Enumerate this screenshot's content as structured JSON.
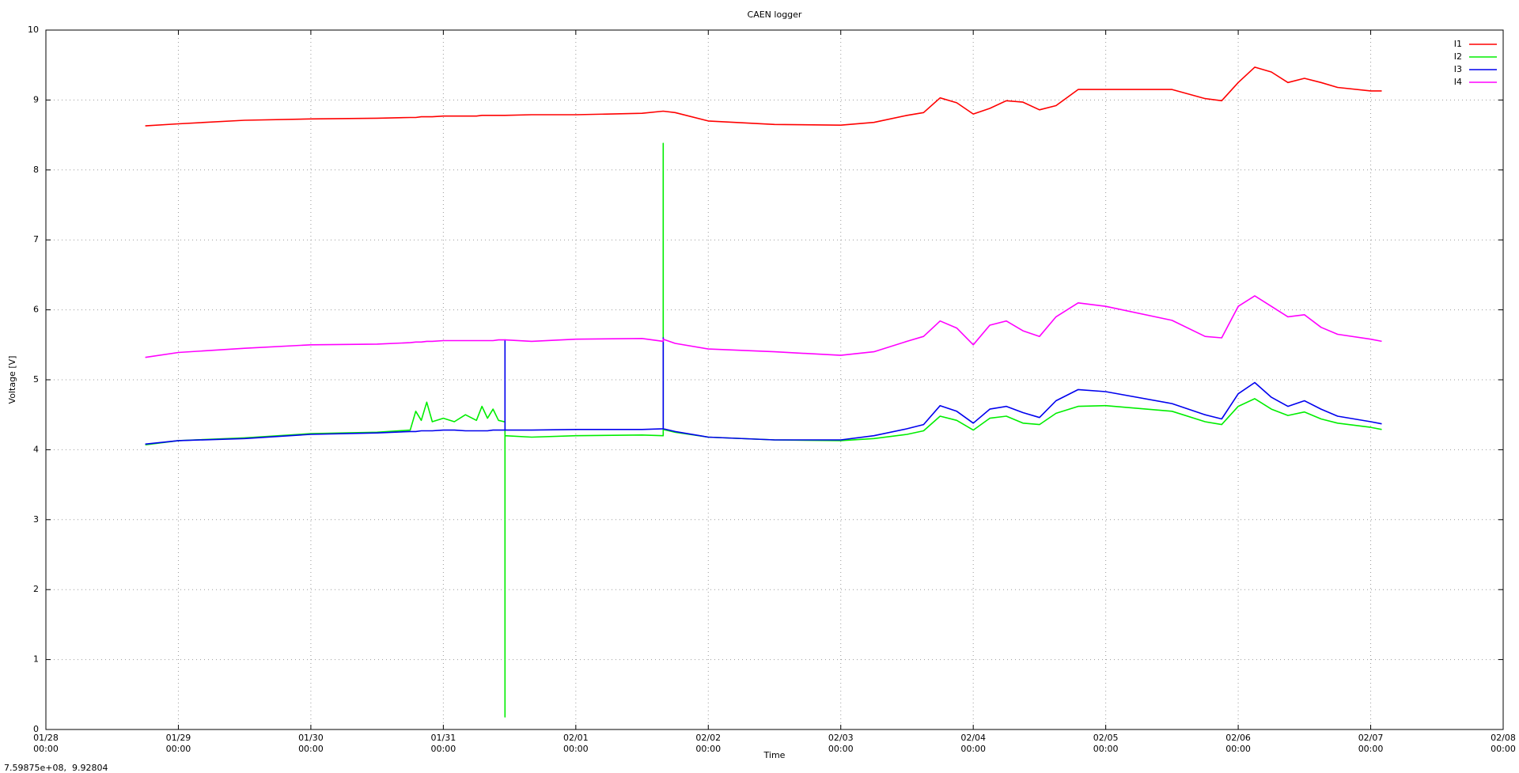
{
  "chart_data": {
    "type": "line",
    "title": "CAEN logger",
    "x_label": "Time",
    "y_label": "Voltage [V]",
    "status_text": "7.59875e+08,  9.92804",
    "grid": true,
    "legend_position": "top-right",
    "xlim": [
      "01/28 00:00",
      "02/08 00:00"
    ],
    "xticks": [
      "01/28 00:00",
      "01/29 00:00",
      "01/30 00:00",
      "01/31 00:00",
      "02/01 00:00",
      "02/02 00:00",
      "02/03 00:00",
      "02/04 00:00",
      "02/05 00:00",
      "02/06 00:00",
      "02/07 00:00",
      "02/08 00:00"
    ],
    "ylim": [
      0,
      10
    ],
    "yticks": [
      0,
      1,
      2,
      3,
      4,
      5,
      6,
      7,
      8,
      9,
      10
    ],
    "x": [
      "01/28 18:00",
      "01/29 00:00",
      "01/29 12:00",
      "01/30 00:00",
      "01/30 12:00",
      "01/30 18:00",
      "01/30 19:00",
      "01/30 20:00",
      "01/30 21:00",
      "01/30 22:00",
      "01/31 00:00",
      "01/31 02:00",
      "01/31 04:00",
      "01/31 06:00",
      "01/31 07:00",
      "01/31 08:00",
      "01/31 09:00",
      "01/31 10:00",
      "01/31 11:00",
      "01/31 11:10",
      "01/31 11:10",
      "01/31 11:10",
      "01/31 16:00",
      "02/01 00:00",
      "02/01 12:00",
      "02/01 15:50",
      "02/01 15:50",
      "02/01 15:50",
      "02/01 18:00",
      "02/02 00:00",
      "02/02 12:00",
      "02/03 00:00",
      "02/03 06:00",
      "02/03 12:00",
      "02/03 15:00",
      "02/03 18:00",
      "02/03 21:00",
      "02/04 00:00",
      "02/04 03:00",
      "02/04 06:00",
      "02/04 09:00",
      "02/04 12:00",
      "02/04 15:00",
      "02/04 19:00",
      "02/05 00:00",
      "02/05 12:00",
      "02/05 18:00",
      "02/05 21:00",
      "02/06 00:00",
      "02/06 03:00",
      "02/06 06:00",
      "02/06 09:00",
      "02/06 12:00",
      "02/06 15:00",
      "02/06 18:00",
      "02/07 00:00",
      "02/07 02:00"
    ],
    "series": [
      {
        "name": "I1",
        "color": "#ff0000",
        "values": [
          8.63,
          8.66,
          8.71,
          8.73,
          8.74,
          8.75,
          8.75,
          8.76,
          8.76,
          8.76,
          8.77,
          8.77,
          8.77,
          8.77,
          8.78,
          8.78,
          8.78,
          8.78,
          8.78,
          8.78,
          8.78,
          8.78,
          8.79,
          8.79,
          8.81,
          8.84,
          8.84,
          8.84,
          8.82,
          8.7,
          8.65,
          8.64,
          8.68,
          8.78,
          8.82,
          9.03,
          8.96,
          8.8,
          8.88,
          8.99,
          8.97,
          8.86,
          8.92,
          9.15,
          9.15,
          9.15,
          9.02,
          8.99,
          9.25,
          9.47,
          9.4,
          9.25,
          9.31,
          9.25,
          9.18,
          9.13,
          9.13
        ]
      },
      {
        "name": "I2",
        "color": "#00ee00",
        "values": [
          4.07,
          4.13,
          4.17,
          4.23,
          4.25,
          4.28,
          4.55,
          4.42,
          4.68,
          4.4,
          4.45,
          4.4,
          4.5,
          4.42,
          4.62,
          4.45,
          4.58,
          4.42,
          4.4,
          4.4,
          0.18,
          4.2,
          4.18,
          4.2,
          4.21,
          4.2,
          8.38,
          4.29,
          4.25,
          4.18,
          4.14,
          4.13,
          4.16,
          4.22,
          4.27,
          4.48,
          4.42,
          4.28,
          4.45,
          4.48,
          4.38,
          4.36,
          4.52,
          4.62,
          4.63,
          4.55,
          4.4,
          4.36,
          4.62,
          4.73,
          4.58,
          4.49,
          4.54,
          4.44,
          4.38,
          4.32,
          4.29
        ]
      },
      {
        "name": "I3",
        "color": "#0000ee",
        "values": [
          4.08,
          4.13,
          4.16,
          4.22,
          4.24,
          4.26,
          4.26,
          4.27,
          4.27,
          4.27,
          4.28,
          4.28,
          4.27,
          4.27,
          4.27,
          4.27,
          4.28,
          4.28,
          4.28,
          4.28,
          5.57,
          4.28,
          4.28,
          4.29,
          4.29,
          4.3,
          5.6,
          4.3,
          4.26,
          4.18,
          4.14,
          4.14,
          4.2,
          4.3,
          4.36,
          4.63,
          4.55,
          4.38,
          4.58,
          4.62,
          4.53,
          4.46,
          4.7,
          4.86,
          4.83,
          4.66,
          4.5,
          4.44,
          4.8,
          4.96,
          4.75,
          4.62,
          4.7,
          4.58,
          4.48,
          4.4,
          4.37
        ]
      },
      {
        "name": "I4",
        "color": "#ff00ff",
        "values": [
          5.32,
          5.39,
          5.45,
          5.5,
          5.51,
          5.53,
          5.54,
          5.54,
          5.55,
          5.55,
          5.56,
          5.56,
          5.56,
          5.56,
          5.56,
          5.56,
          5.56,
          5.57,
          5.57,
          5.57,
          5.57,
          5.57,
          5.55,
          5.58,
          5.59,
          5.55,
          5.58,
          5.58,
          5.52,
          5.44,
          5.4,
          5.35,
          5.4,
          5.55,
          5.62,
          5.84,
          5.74,
          5.5,
          5.78,
          5.84,
          5.7,
          5.62,
          5.9,
          6.1,
          6.05,
          5.85,
          5.62,
          5.6,
          6.05,
          6.2,
          6.05,
          5.9,
          5.93,
          5.75,
          5.65,
          5.58,
          5.55
        ]
      }
    ]
  }
}
